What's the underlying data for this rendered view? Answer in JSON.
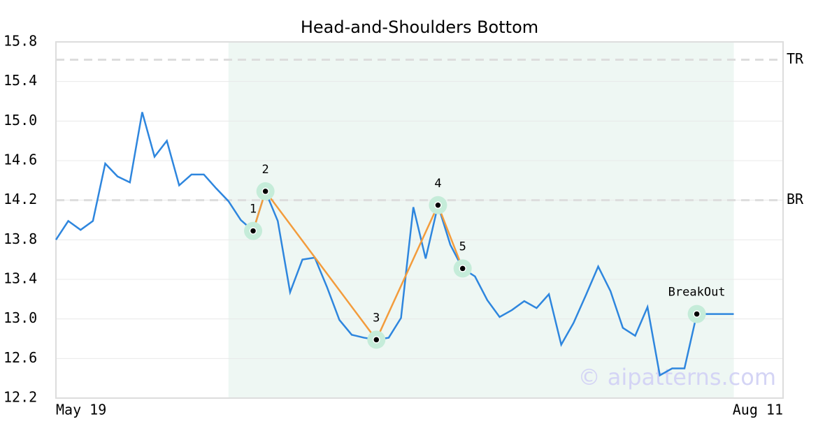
{
  "chart_data": {
    "type": "line",
    "title": "Head-and-Shoulders Bottom",
    "x": [
      0,
      1,
      2,
      3,
      4,
      5,
      6,
      7,
      8,
      9,
      10,
      11,
      12,
      13,
      14,
      15,
      16,
      17,
      18,
      19,
      20,
      21,
      22,
      23,
      24,
      25,
      26,
      27,
      28,
      29,
      30,
      31,
      32,
      33,
      34,
      35,
      36,
      37,
      38,
      39,
      40,
      41,
      42,
      43,
      44,
      45,
      46,
      47,
      48,
      49,
      50,
      51,
      52,
      53,
      54,
      55
    ],
    "series": [
      {
        "color": "#2e86de",
        "values": [
          13.8,
          13.99,
          13.9,
          13.99,
          14.57,
          14.44,
          14.38,
          15.09,
          14.64,
          14.8,
          14.35,
          14.46,
          14.46,
          14.32,
          14.19,
          14.0,
          13.89,
          14.29,
          13.99,
          13.27,
          13.6,
          13.62,
          13.32,
          12.99,
          12.84,
          12.81,
          12.79,
          12.81,
          13.01,
          14.13,
          13.61,
          14.15,
          13.75,
          13.51,
          13.43,
          13.19,
          13.02,
          13.09,
          13.18,
          13.11,
          13.25,
          12.74,
          12.96,
          13.24,
          13.53,
          13.28,
          12.91,
          12.83,
          13.12,
          12.43,
          12.5,
          12.5,
          13.05,
          13.05,
          13.05,
          13.05
        ]
      }
    ],
    "xlim": [
      0,
      59
    ],
    "xticks": [
      {
        "value": 0,
        "label": "May 19"
      },
      {
        "value": 59,
        "label": "Aug 11"
      }
    ],
    "ylim": [
      12.2,
      15.8
    ],
    "yticks": [
      12.2,
      12.6,
      {
        "value": 13,
        "label": "13.0"
      },
      13.4,
      13.8,
      14.2,
      14.6,
      {
        "value": 15,
        "label": "15.0"
      },
      15.4,
      15.8
    ],
    "grid": true,
    "highlight_range": [
      14,
      55
    ],
    "hlines": [
      {
        "label": "TR",
        "value": 15.62
      },
      {
        "label": "BR",
        "value": 14.2
      }
    ],
    "pattern": [
      {
        "label": "1",
        "x": 16,
        "y": 13.89
      },
      {
        "label": "2",
        "x": 17,
        "y": 14.29
      },
      {
        "label": "3",
        "x": 26,
        "y": 12.79
      },
      {
        "label": "4",
        "x": 31,
        "y": 14.15
      },
      {
        "label": "5",
        "x": 33,
        "y": 13.51
      },
      {
        "label": "BreakOut",
        "x": 52,
        "y": 13.05
      }
    ],
    "pattern_color": "#f39c3c",
    "watermark": "© aipatterns.com"
  }
}
